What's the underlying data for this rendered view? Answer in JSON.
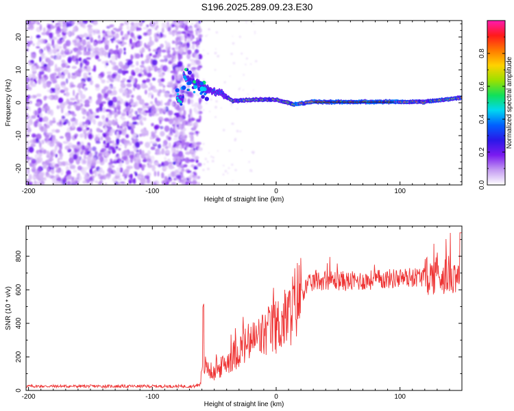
{
  "title": "S196.2025.289.09.23.E30",
  "colors": {
    "snr_line": "#ee3333",
    "colormap": [
      "#ffffff",
      "#c49bf2",
      "#7a1af0",
      "#2a18e8",
      "#0060ff",
      "#00d8f0",
      "#10e05a",
      "#9be000",
      "#ffd200",
      "#ff7a00",
      "#ff1a1a",
      "#ff1ab0"
    ]
  },
  "chart_data": [
    {
      "type": "heatmap",
      "title": "S196.2025.289.09.23.E30",
      "xlabel": "Height of straight line (km)",
      "ylabel": "Frequency (Hz)",
      "xlim": [
        -202,
        150
      ],
      "ylim": [
        -25,
        25
      ],
      "xticks": [
        -200,
        -100,
        0,
        100
      ],
      "xtick_labels": [
        "-200",
        "-100",
        "0",
        "100"
      ],
      "yticks": [
        -20,
        -10,
        0,
        10,
        20
      ],
      "ytick_labels": [
        "-20",
        "-10",
        "0",
        "10",
        "20"
      ],
      "colorbar": {
        "label": "Normalized spectral amplitude",
        "range": [
          0,
          1
        ],
        "ticks": [
          0.0,
          0.2,
          0.4,
          0.6,
          0.8
        ],
        "tick_labels": [
          "0.0",
          "0.2",
          "0.4",
          "0.6",
          "0.8"
        ]
      },
      "ridge": {
        "description_points_km_hz": [
          [
            -75,
            8
          ],
          [
            -65,
            6
          ],
          [
            -55,
            4
          ],
          [
            -45,
            3
          ],
          [
            -35,
            0.5
          ],
          [
            -20,
            1
          ],
          [
            0,
            1
          ],
          [
            15,
            -0.5
          ],
          [
            30,
            0.3
          ],
          [
            60,
            0.2
          ],
          [
            90,
            0.3
          ],
          [
            120,
            0.3
          ],
          [
            150,
            1.5
          ]
        ]
      },
      "noise_region_km": [
        -202,
        -75
      ]
    },
    {
      "type": "line",
      "xlabel": "Height of straight line (km)",
      "ylabel": "SNR (10 * v/v)",
      "xlim": [
        -202,
        150
      ],
      "ylim": [
        0,
        980
      ],
      "xticks": [
        -200,
        -100,
        0,
        100
      ],
      "xtick_labels": [
        "-200",
        "-100",
        "0",
        "100"
      ],
      "yticks": [
        0,
        200,
        400,
        600,
        800
      ],
      "ytick_labels": [
        "0",
        "200",
        "400",
        "600",
        "800"
      ],
      "series": [
        {
          "name": "SNR",
          "envelope_points_km_snr": [
            [
              -202,
              25
            ],
            [
              -65,
              25
            ],
            [
              -62,
              40
            ],
            [
              -58,
              150
            ],
            [
              -50,
              100
            ],
            [
              -40,
              170
            ],
            [
              -30,
              240
            ],
            [
              -20,
              290
            ],
            [
              -10,
              330
            ],
            [
              0,
              380
            ],
            [
              10,
              440
            ],
            [
              15,
              520
            ],
            [
              20,
              580
            ],
            [
              25,
              620
            ],
            [
              30,
              650
            ],
            [
              40,
              660
            ],
            [
              60,
              650
            ],
            [
              80,
              660
            ],
            [
              100,
              670
            ],
            [
              120,
              680
            ],
            [
              140,
              690
            ],
            [
              150,
              700
            ]
          ]
        }
      ]
    }
  ]
}
